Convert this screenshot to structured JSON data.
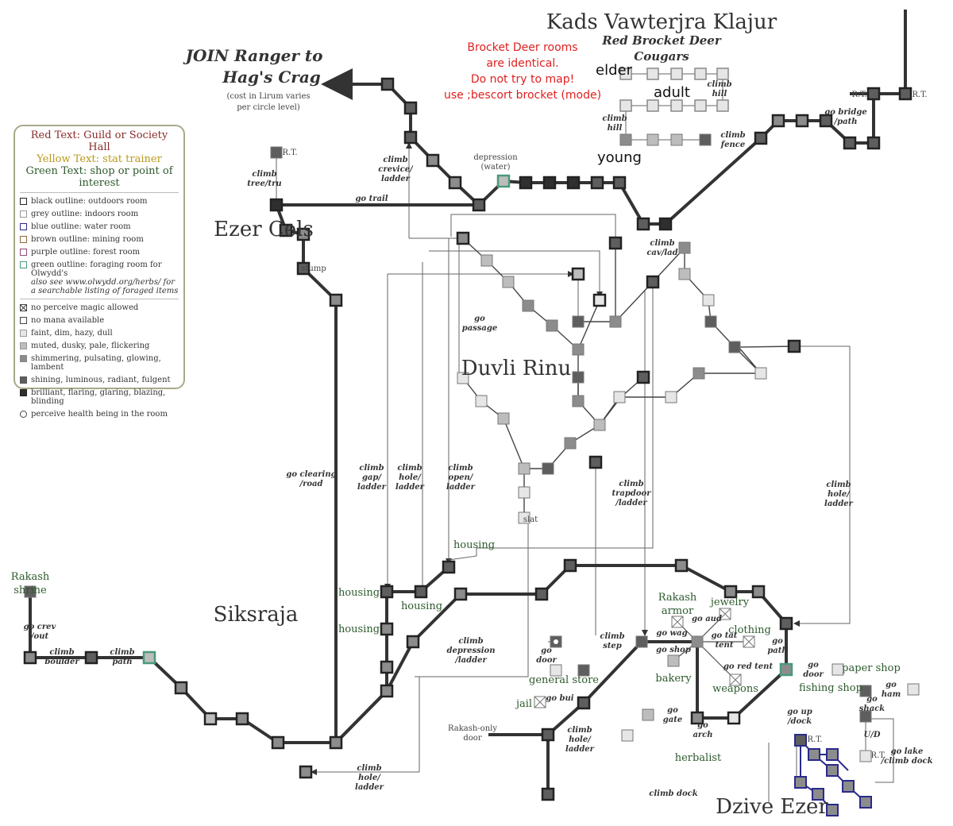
{
  "titles": {
    "area_title": "Kads Vawterjra Klajur",
    "area_sub1": "Red Brocket Deer",
    "area_sub2": "Cougars",
    "join_line1": "JOIN Ranger to",
    "join_line2": "Hag's Crag",
    "join_note1": "(cost in Lirum varies",
    "join_note2": "per circle level)",
    "duvli": "Duvli Rinu",
    "siksraja": "Siksraja",
    "ezer_cels": "Ezer Cels",
    "dzive_ezer": "Dzive Ezer"
  },
  "red_note": [
    "Brocket Deer rooms",
    "are identical.",
    "Do not try to map!",
    "use ;bescort brocket (mode)"
  ],
  "deer_labels": {
    "elder": "elder",
    "adult": "adult",
    "young": "young"
  },
  "legend": {
    "header_red": "Red Text: Guild or Society Hall",
    "header_yellow": "Yellow Text: stat trainer",
    "header_green": "Green Text: shop or point of interest",
    "rows": [
      {
        "text": "black outline: outdoors room",
        "border": "#222222",
        "fill": "#ffffff"
      },
      {
        "text": "grey outline: indoors room",
        "border": "#999999",
        "fill": "#ffffff"
      },
      {
        "text": "blue outline: water room",
        "border": "#2a2a8c",
        "fill": "#ffffff"
      },
      {
        "text": "brown outline: mining room",
        "border": "#8b6a3a",
        "fill": "#ffffff"
      },
      {
        "text": "purple outline: forest room",
        "border": "#8a4a7a",
        "fill": "#ffffff"
      },
      {
        "text": "green outline: foraging room for Olwydd's",
        "note": "also see www.olwydd.org/herbs/ for a searchable listing of foraged items",
        "border": "#4a9a7a",
        "fill": "#ffffff"
      }
    ],
    "rows2": [
      {
        "text": "no perceive magic allowed",
        "border": "#444444",
        "fill": "#ffffff",
        "x": true
      },
      {
        "text": "no mana available",
        "border": "#444444",
        "fill": "#ffffff"
      },
      {
        "text": "faint, dim, hazy, dull",
        "border": "#999999",
        "fill": "#e6e6e6"
      },
      {
        "text": "muted, dusky, pale, flickering",
        "border": "#999999",
        "fill": "#bdbdbd"
      },
      {
        "text": "shimmering, pulsating, glowing, lambent",
        "border": "#888888",
        "fill": "#8c8c8c"
      },
      {
        "text": "shining, luminous, radiant, fulgent",
        "border": "#555555",
        "fill": "#5e5e5e"
      },
      {
        "text": "brilliant, flaring, glaring, blazing, blinding",
        "border": "#222222",
        "fill": "#2f2f2f"
      },
      {
        "text": "perceive health being in the room",
        "border": "#444444",
        "fill": "#ffffff",
        "circle": true
      }
    ]
  },
  "commands": {
    "climb_tree": [
      "climb",
      "tree/tru"
    ],
    "go_trail": [
      "go trail"
    ],
    "climb_crevice": [
      "climb",
      "crevice/",
      "ladder"
    ],
    "depression": [
      "depression",
      "(water)"
    ],
    "climb_hill_1": [
      "climb",
      "hill"
    ],
    "climb_hill_2": [
      "climb",
      "hill"
    ],
    "climb_fence": [
      "climb",
      "fence"
    ],
    "go_bridge": [
      "go bridge",
      "/path"
    ],
    "climb_cav": [
      "climb",
      "cav/lad"
    ],
    "stump": [
      "stump"
    ],
    "go_passage": [
      "go",
      "passage"
    ],
    "go_clearing": [
      "go clearing",
      "/road"
    ],
    "climb_gap": [
      "climb",
      "gap/",
      "ladder"
    ],
    "climb_hole1": [
      "climb",
      "hole/",
      "ladder"
    ],
    "climb_open": [
      "climb",
      "open/",
      "ladder"
    ],
    "slat": [
      "slat"
    ],
    "climb_trapdoor": [
      "climb",
      "trapdoor",
      "/ladder"
    ],
    "climb_hole2": [
      "climb",
      "hole/",
      "ladder"
    ],
    "go_crev": [
      "go crev",
      "/out"
    ],
    "climb_boulder": [
      "climb",
      "boulder"
    ],
    "climb_path": [
      "climb",
      "path"
    ],
    "climb_depression": [
      "climb",
      "depression",
      "/ladder"
    ],
    "climb_step": [
      "climb",
      "step"
    ],
    "go_door1": [
      "go",
      "door"
    ],
    "go_wag": [
      "go wag"
    ],
    "go_aud": [
      "go aud"
    ],
    "go_shop": [
      "go shop"
    ],
    "go_tat": [
      "go tat",
      "tent"
    ],
    "go_red": [
      "go red tent"
    ],
    "go_path": [
      "go",
      "path"
    ],
    "go_door2": [
      "go",
      "door"
    ],
    "go_ham": [
      "go",
      "ham"
    ],
    "go_shack": [
      "go",
      "shack"
    ],
    "go_bui": [
      "go bui"
    ],
    "climb_hole3": [
      "climb",
      "hole/",
      "ladder"
    ],
    "go_gate": [
      "go",
      "gate"
    ],
    "go_arch": [
      "go",
      "arch"
    ],
    "go_up_dock": [
      "go up",
      "/dock"
    ],
    "ud": [
      "U/D"
    ],
    "go_lake": [
      "go lake",
      "/climb dock"
    ],
    "climb_hole4": [
      "climb",
      "hole/",
      "ladder"
    ],
    "climb_dock": [
      "climb dock"
    ],
    "rakash_door": [
      "Rakash-only",
      "door"
    ],
    "rt": "R.T."
  },
  "places": {
    "rakash_shrine": [
      "Rakash",
      "shrine"
    ],
    "housing": "housing",
    "rakash_armor": [
      "Rakash",
      "armor"
    ],
    "jewelry": "jewelry",
    "clothing": "clothing",
    "tent": "tent",
    "bakery": "bakery",
    "weapons": "weapons",
    "general_store": "general store",
    "paper_shop": "paper shop",
    "fishing_shop": "fishing shop",
    "jail": "jail",
    "herbalist": "herbalist"
  },
  "colors": {
    "bright": "#2f2f2f",
    "shining": "#5e5e5e",
    "glow": "#8c8c8c",
    "muted": "#bdbdbd",
    "faint": "#e6e6e6",
    "water": "#2a2a8c",
    "forage": "#4a9a7a",
    "red_text": "#e02020",
    "green_text": "#2d5a2d"
  }
}
